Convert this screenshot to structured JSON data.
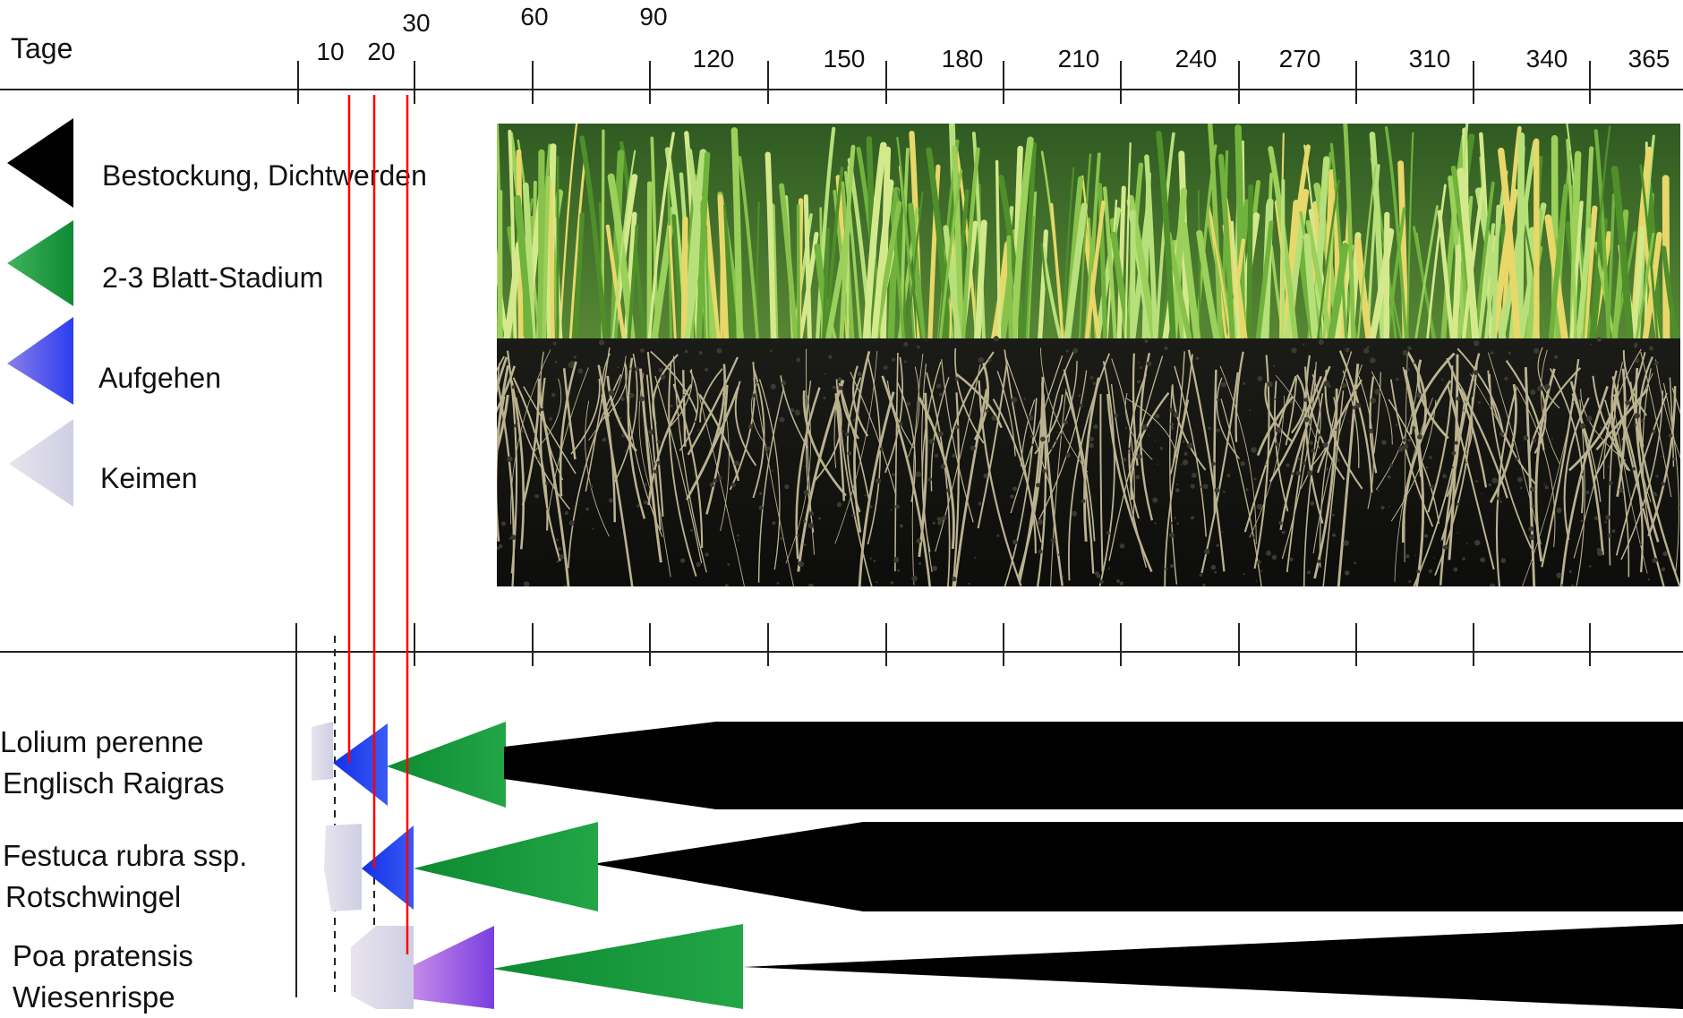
{
  "axis": {
    "title": "Tage",
    "ticks": [
      "10",
      "20",
      "30",
      "60",
      "90",
      "120",
      "150",
      "180",
      "210",
      "240",
      "270",
      "310",
      "340",
      "365"
    ]
  },
  "legend": [
    {
      "label": "Bestockung, Dichtwerden",
      "color": "#000000"
    },
    {
      "label": "2-3 Blatt-Stadium",
      "color": "#1a9a3a"
    },
    {
      "label": "Aufgehen",
      "color": "#2a3ef0"
    },
    {
      "label": "Keimen",
      "color": "#d9d9ec"
    }
  ],
  "species": [
    {
      "latin": "Lolium perenne",
      "common": "Englisch Raigras"
    },
    {
      "latin": "Festuca rubra ssp.",
      "common": "Rotschwingel"
    },
    {
      "latin": "Poa pratensis",
      "common": "Wiesenrispe"
    }
  ],
  "colors": {
    "keimen": "#d9d9ec",
    "aufgehen": "#2a3ef0",
    "blatt": "#1a9a3a",
    "bestockung": "#000000",
    "marker": "#ff0000"
  },
  "photo": {
    "icon": "grass-roots-photo"
  }
}
